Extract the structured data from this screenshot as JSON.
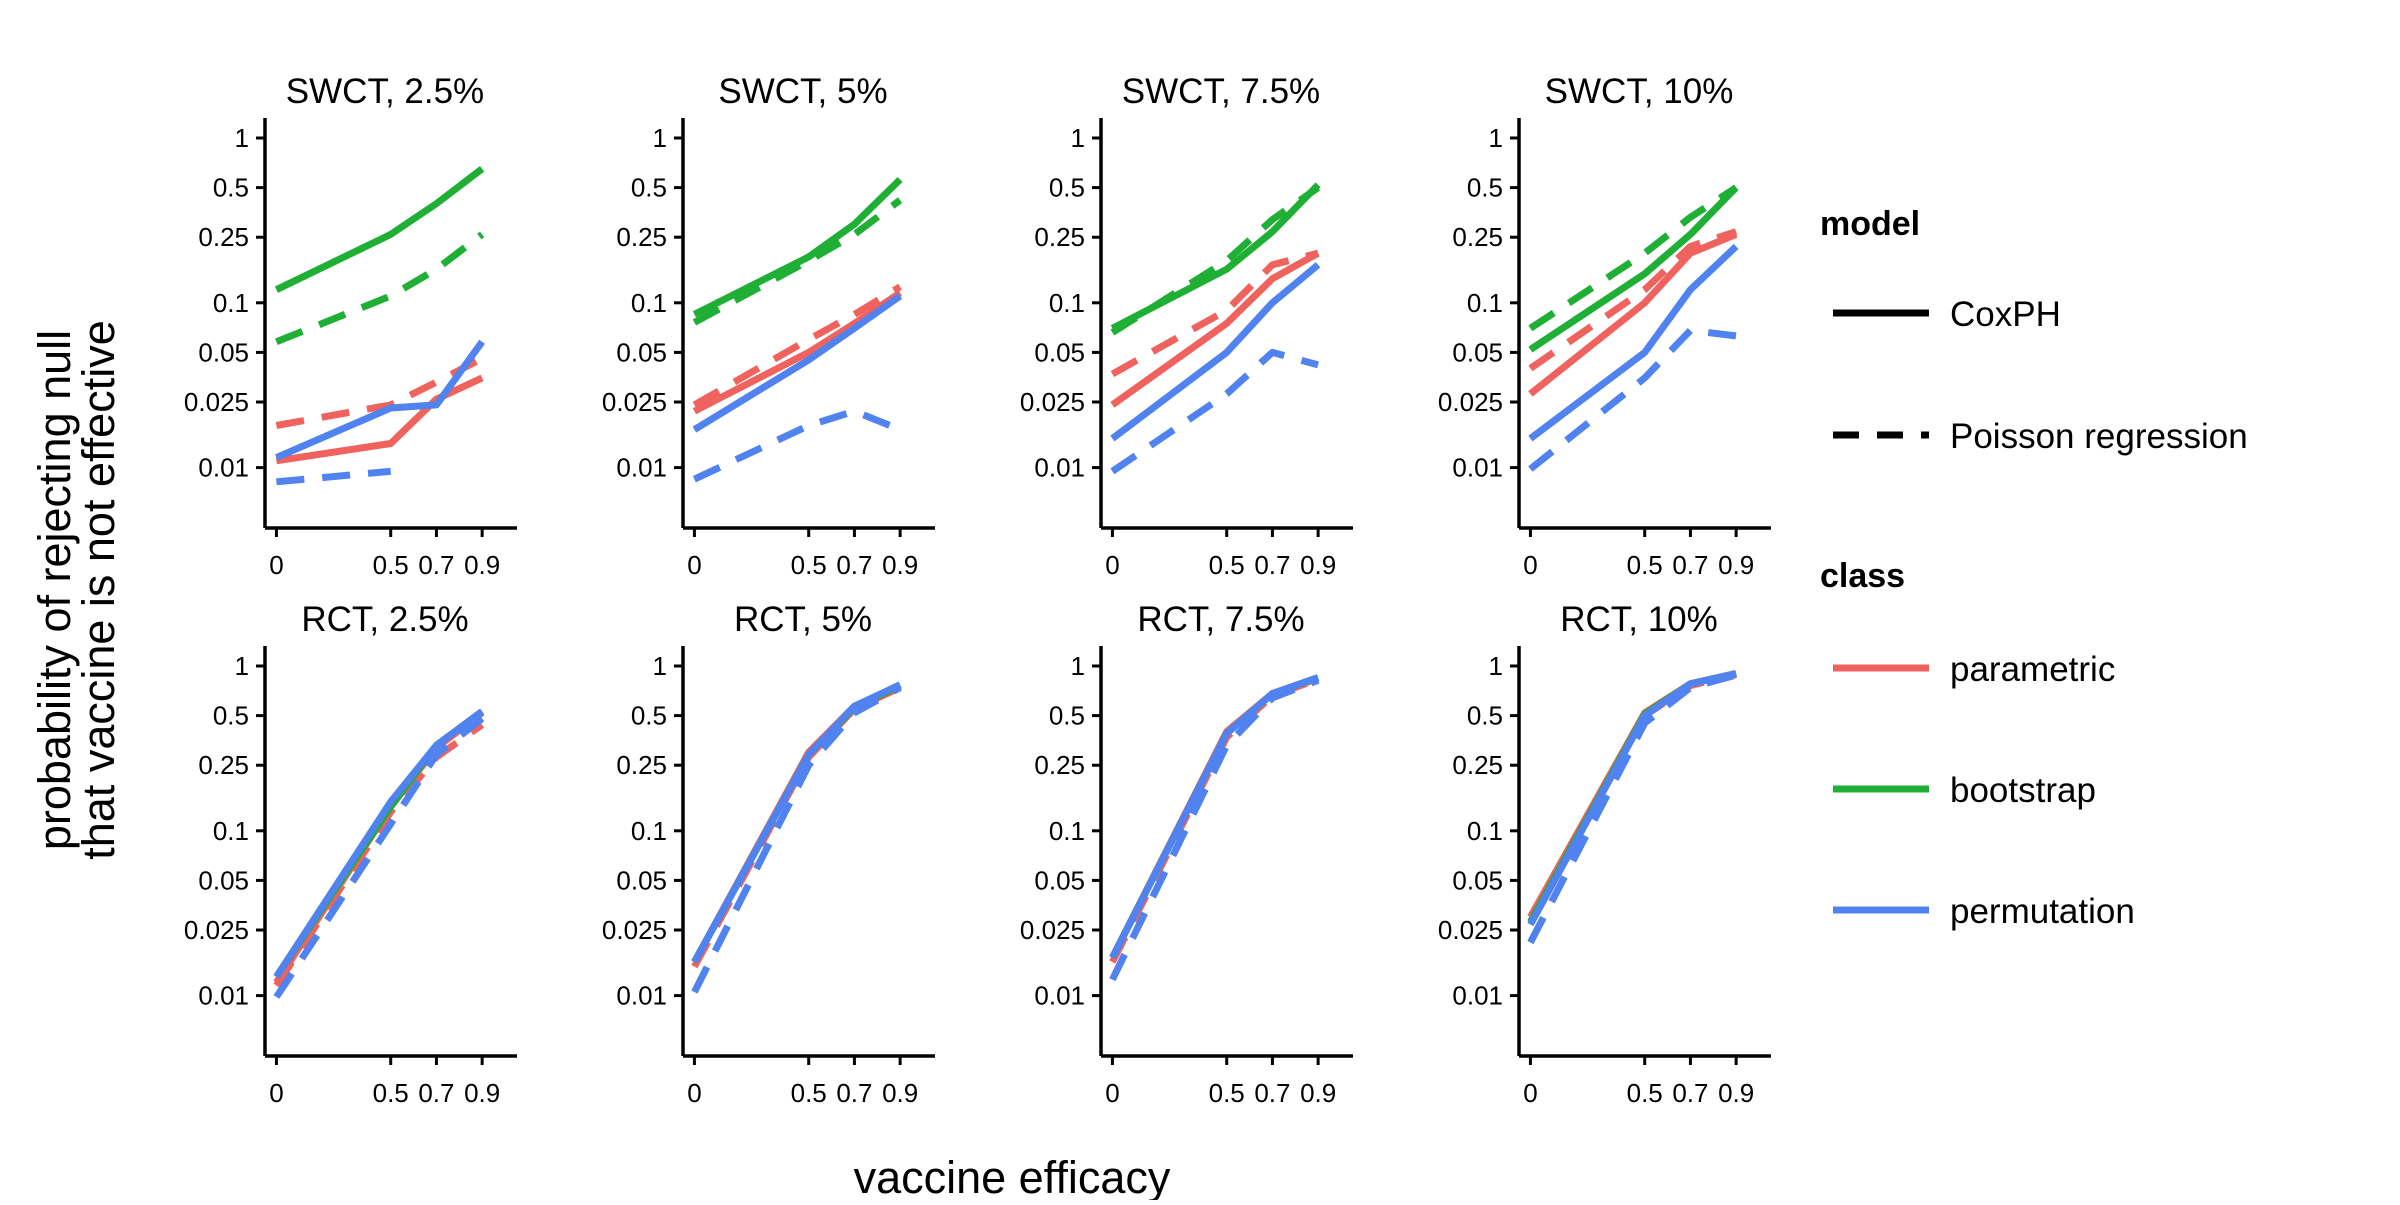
{
  "chart_data": {
    "type": "line",
    "xlabel": "vaccine efficacy",
    "ylabel": [
      "probability of rejecting null",
      "that vaccine is not effective"
    ],
    "x_ticks": [
      0,
      0.5,
      0.7,
      0.9
    ],
    "x_tick_labels": [
      "0",
      "0.5",
      "0.7",
      "0.9"
    ],
    "y_scale": "log",
    "y_ticks": [
      0.01,
      0.025,
      0.05,
      0.1,
      0.25,
      0.5,
      1
    ],
    "y_tick_labels": [
      "0.01",
      "0.025",
      "0.05",
      "0.1",
      "0.25",
      "0.5",
      "1"
    ],
    "ylim": [
      0.0043,
      1
    ],
    "xlim": [
      -0.05,
      1.0
    ],
    "legend": {
      "placement": "right",
      "model_title": "model",
      "model_entries": [
        {
          "label": "CoxPH",
          "dash": "solid"
        },
        {
          "label": "Poisson regression",
          "dash": "dashed"
        }
      ],
      "class_title": "class",
      "class_entries": [
        {
          "label": "parametric",
          "color": "#F0625D"
        },
        {
          "label": "bootstrap",
          "color": "#1FAF34"
        },
        {
          "label": "permutation",
          "color": "#5083F0"
        }
      ]
    },
    "panels": [
      {
        "title": "SWCT, 2.5%",
        "series": [
          {
            "class": "bootstrap",
            "model": "CoxPH",
            "x": [
              0,
              0.5,
              0.7,
              0.9
            ],
            "y": [
              0.12,
              0.26,
              0.4,
              0.65
            ]
          },
          {
            "class": "bootstrap",
            "model": "Poisson regression",
            "x": [
              0,
              0.5,
              0.7,
              0.9
            ],
            "y": [
              0.058,
              0.11,
              0.16,
              0.26
            ]
          },
          {
            "class": "parametric",
            "model": "Poisson regression",
            "x": [
              0,
              0.5,
              0.7,
              0.9
            ],
            "y": [
              0.018,
              0.024,
              0.033,
              0.046
            ]
          },
          {
            "class": "parametric",
            "model": "CoxPH",
            "x": [
              0,
              0.5,
              0.7,
              0.9
            ],
            "y": [
              0.011,
              0.014,
              0.026,
              0.035
            ]
          },
          {
            "class": "permutation",
            "model": "CoxPH",
            "x": [
              0,
              0.5,
              0.7,
              0.9
            ],
            "y": [
              0.0115,
              0.023,
              0.024,
              0.058
            ]
          },
          {
            "class": "permutation",
            "model": "Poisson regression",
            "x": [
              0,
              0.5
            ],
            "y": [
              0.0082,
              0.0095
            ]
          }
        ]
      },
      {
        "title": "SWCT, 5%",
        "series": [
          {
            "class": "bootstrap",
            "model": "CoxPH",
            "x": [
              0,
              0.5,
              0.7,
              0.9
            ],
            "y": [
              0.085,
              0.19,
              0.3,
              0.56
            ]
          },
          {
            "class": "bootstrap",
            "model": "Poisson regression",
            "x": [
              0,
              0.5,
              0.7,
              0.9
            ],
            "y": [
              0.076,
              0.18,
              0.26,
              0.42
            ]
          },
          {
            "class": "parametric",
            "model": "Poisson regression",
            "x": [
              0,
              0.5,
              0.7,
              0.9
            ],
            "y": [
              0.024,
              0.06,
              0.085,
              0.125
            ]
          },
          {
            "class": "parametric",
            "model": "CoxPH",
            "x": [
              0,
              0.5,
              0.7,
              0.9
            ],
            "y": [
              0.022,
              0.05,
              0.075,
              0.115
            ]
          },
          {
            "class": "permutation",
            "model": "CoxPH",
            "x": [
              0,
              0.5,
              0.7,
              0.9
            ],
            "y": [
              0.017,
              0.045,
              0.07,
              0.11
            ]
          },
          {
            "class": "permutation",
            "model": "Poisson regression",
            "x": [
              0,
              0.5,
              0.7,
              0.9
            ],
            "y": [
              0.0085,
              0.018,
              0.022,
              0.017
            ]
          }
        ]
      },
      {
        "title": "SWCT, 7.5%",
        "series": [
          {
            "class": "bootstrap",
            "model": "CoxPH",
            "x": [
              0,
              0.5,
              0.7,
              0.9
            ],
            "y": [
              0.07,
              0.16,
              0.27,
              0.52
            ]
          },
          {
            "class": "bootstrap",
            "model": "Poisson regression",
            "x": [
              0,
              0.5,
              0.7,
              0.9
            ],
            "y": [
              0.066,
              0.18,
              0.32,
              0.5
            ]
          },
          {
            "class": "parametric",
            "model": "Poisson regression",
            "x": [
              0,
              0.5,
              0.7,
              0.9
            ],
            "y": [
              0.037,
              0.09,
              0.17,
              0.2
            ]
          },
          {
            "class": "parametric",
            "model": "CoxPH",
            "x": [
              0,
              0.5,
              0.7,
              0.9
            ],
            "y": [
              0.024,
              0.075,
              0.14,
              0.2
            ]
          },
          {
            "class": "permutation",
            "model": "CoxPH",
            "x": [
              0,
              0.5,
              0.7,
              0.9
            ],
            "y": [
              0.015,
              0.05,
              0.1,
              0.17
            ]
          },
          {
            "class": "permutation",
            "model": "Poisson regression",
            "x": [
              0,
              0.5,
              0.7,
              0.9
            ],
            "y": [
              0.0095,
              0.028,
              0.05,
              0.042
            ]
          }
        ]
      },
      {
        "title": "SWCT, 10%",
        "series": [
          {
            "class": "bootstrap",
            "model": "CoxPH",
            "x": [
              0,
              0.5,
              0.7,
              0.9
            ],
            "y": [
              0.052,
              0.15,
              0.26,
              0.5
            ]
          },
          {
            "class": "bootstrap",
            "model": "Poisson regression",
            "x": [
              0,
              0.5,
              0.7,
              0.9
            ],
            "y": [
              0.07,
              0.2,
              0.33,
              0.5
            ]
          },
          {
            "class": "parametric",
            "model": "Poisson regression",
            "x": [
              0,
              0.5,
              0.7,
              0.9
            ],
            "y": [
              0.04,
              0.12,
              0.22,
              0.27
            ]
          },
          {
            "class": "parametric",
            "model": "CoxPH",
            "x": [
              0,
              0.5,
              0.7,
              0.9
            ],
            "y": [
              0.028,
              0.1,
              0.2,
              0.26
            ]
          },
          {
            "class": "permutation",
            "model": "CoxPH",
            "x": [
              0,
              0.5,
              0.7,
              0.9
            ],
            "y": [
              0.015,
              0.05,
              0.12,
              0.22
            ]
          },
          {
            "class": "permutation",
            "model": "Poisson regression",
            "x": [
              0,
              0.5,
              0.7,
              0.9
            ],
            "y": [
              0.0098,
              0.035,
              0.068,
              0.063
            ]
          }
        ]
      },
      {
        "title": "RCT, 2.5%",
        "series": [
          {
            "class": "parametric",
            "model": "CoxPH",
            "x": [
              0,
              0.5,
              0.7,
              0.9
            ],
            "y": [
              0.012,
              0.14,
              0.32,
              0.52
            ]
          },
          {
            "class": "parametric",
            "model": "Poisson regression",
            "x": [
              0,
              0.5,
              0.7,
              0.9
            ],
            "y": [
              0.0115,
              0.13,
              0.28,
              0.44
            ]
          },
          {
            "class": "bootstrap",
            "model": "CoxPH",
            "x": [
              0,
              0.5,
              0.7,
              0.9
            ],
            "y": [
              0.013,
              0.14,
              0.33,
              0.53
            ]
          },
          {
            "class": "permutation",
            "model": "CoxPH",
            "x": [
              0,
              0.5,
              0.7,
              0.9
            ],
            "y": [
              0.013,
              0.15,
              0.33,
              0.53
            ]
          },
          {
            "class": "permutation",
            "model": "Poisson regression",
            "x": [
              0,
              0.5,
              0.7,
              0.9
            ],
            "y": [
              0.0098,
              0.11,
              0.29,
              0.48
            ]
          }
        ]
      },
      {
        "title": "RCT, 5%",
        "series": [
          {
            "class": "parametric",
            "model": "CoxPH",
            "x": [
              0,
              0.5,
              0.7,
              0.9
            ],
            "y": [
              0.016,
              0.3,
              0.57,
              0.75
            ]
          },
          {
            "class": "parametric",
            "model": "Poisson regression",
            "x": [
              0,
              0.5,
              0.7,
              0.9
            ],
            "y": [
              0.015,
              0.28,
              0.55,
              0.74
            ]
          },
          {
            "class": "bootstrap",
            "model": "CoxPH",
            "x": [
              0,
              0.5,
              0.7,
              0.9
            ],
            "y": [
              0.016,
              0.29,
              0.56,
              0.76
            ]
          },
          {
            "class": "permutation",
            "model": "CoxPH",
            "x": [
              0,
              0.5,
              0.7,
              0.9
            ],
            "y": [
              0.016,
              0.29,
              0.57,
              0.77
            ]
          },
          {
            "class": "permutation",
            "model": "Poisson regression",
            "x": [
              0,
              0.5,
              0.7,
              0.9
            ],
            "y": [
              0.0105,
              0.25,
              0.52,
              0.74
            ]
          }
        ]
      },
      {
        "title": "RCT, 7.5%",
        "series": [
          {
            "class": "parametric",
            "model": "CoxPH",
            "x": [
              0,
              0.5,
              0.7,
              0.9
            ],
            "y": [
              0.017,
              0.4,
              0.68,
              0.84
            ]
          },
          {
            "class": "parametric",
            "model": "Poisson regression",
            "x": [
              0,
              0.5,
              0.7,
              0.9
            ],
            "y": [
              0.016,
              0.37,
              0.66,
              0.83
            ]
          },
          {
            "class": "bootstrap",
            "model": "CoxPH",
            "x": [
              0,
              0.5,
              0.7,
              0.9
            ],
            "y": [
              0.017,
              0.39,
              0.68,
              0.85
            ]
          },
          {
            "class": "permutation",
            "model": "CoxPH",
            "x": [
              0,
              0.5,
              0.7,
              0.9
            ],
            "y": [
              0.017,
              0.39,
              0.68,
              0.85
            ]
          },
          {
            "class": "permutation",
            "model": "Poisson regression",
            "x": [
              0,
              0.5,
              0.7,
              0.9
            ],
            "y": [
              0.0125,
              0.33,
              0.64,
              0.82
            ]
          }
        ]
      },
      {
        "title": "RCT, 10%",
        "series": [
          {
            "class": "parametric",
            "model": "CoxPH",
            "x": [
              0,
              0.5,
              0.7,
              0.9
            ],
            "y": [
              0.03,
              0.52,
              0.78,
              0.9
            ]
          },
          {
            "class": "parametric",
            "model": "Poisson regression",
            "x": [
              0,
              0.5,
              0.7,
              0.9
            ],
            "y": [
              0.028,
              0.5,
              0.76,
              0.89
            ]
          },
          {
            "class": "bootstrap",
            "model": "CoxPH",
            "x": [
              0,
              0.5,
              0.7,
              0.9
            ],
            "y": [
              0.028,
              0.51,
              0.78,
              0.9
            ]
          },
          {
            "class": "permutation",
            "model": "CoxPH",
            "x": [
              0,
              0.5,
              0.7,
              0.9
            ],
            "y": [
              0.027,
              0.5,
              0.78,
              0.9
            ]
          },
          {
            "class": "permutation",
            "model": "Poisson regression",
            "x": [
              0,
              0.5,
              0.7,
              0.9
            ],
            "y": [
              0.021,
              0.45,
              0.74,
              0.88
            ]
          }
        ]
      }
    ]
  }
}
